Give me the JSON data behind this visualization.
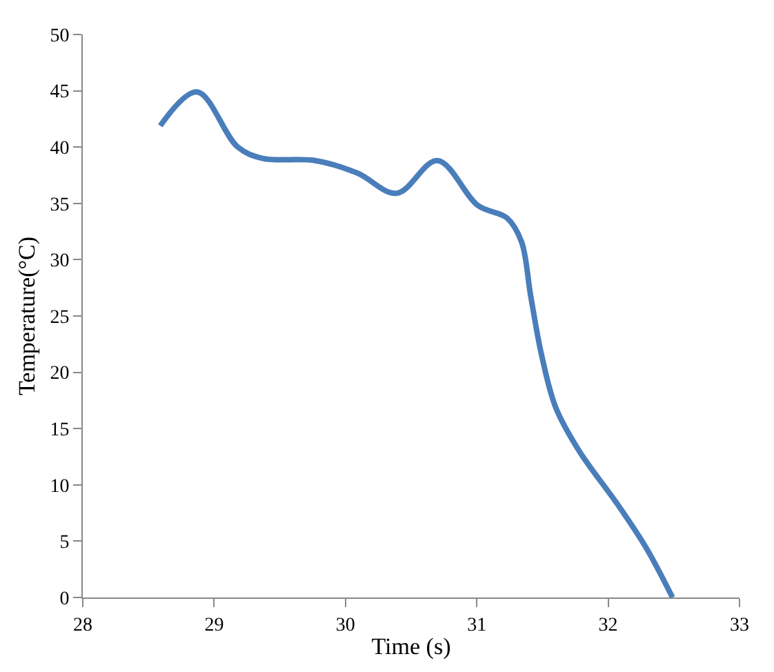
{
  "chart_data": {
    "type": "line",
    "xlabel": "Time (s)",
    "ylabel": "Temperature(°C)",
    "x": [
      28.59,
      28.87,
      29.18,
      29.37,
      29.77,
      30.09,
      30.39,
      30.7,
      31.01,
      31.23,
      31.34,
      31.41,
      31.49,
      31.6,
      31.78,
      32.07,
      32.29,
      32.49
    ],
    "series": [
      {
        "color": "#4a7ebb",
        "values": [
          41.9,
          44.9,
          40.0,
          39.0,
          38.8,
          37.7,
          35.9,
          38.8,
          34.8,
          33.7,
          31.6,
          26.8,
          21.7,
          16.9,
          13.0,
          8.3,
          4.4,
          0
        ]
      }
    ],
    "xlim": [
      28,
      33
    ],
    "xticks": [
      28,
      29,
      30,
      31,
      32,
      33
    ],
    "ylim": [
      0,
      50
    ],
    "yticks": [
      0,
      5,
      10,
      15,
      20,
      25,
      30,
      35,
      40,
      45,
      50
    ],
    "marker": "none",
    "line_style": "solid"
  }
}
